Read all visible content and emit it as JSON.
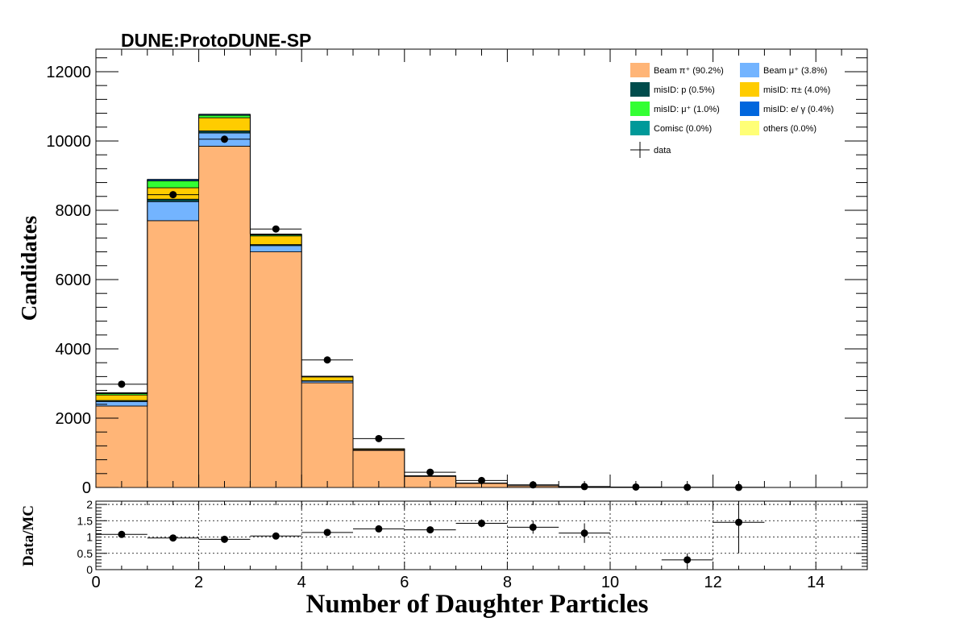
{
  "chart_data": {
    "type": "bar",
    "title": "DUNE:ProtoDUNE-SP",
    "xlabel": "Number of Daughter Particles",
    "ylabel": "Candidates",
    "ratio_ylabel": "Data/MC",
    "xlim": [
      0,
      15
    ],
    "ylim": [
      0,
      12650
    ],
    "ratio_ylim": [
      0,
      2.1
    ],
    "x_ticks": [
      0,
      2,
      4,
      6,
      8,
      10,
      12,
      14
    ],
    "y_ticks": [
      0,
      2000,
      4000,
      6000,
      8000,
      10000,
      12000
    ],
    "ratio_y_ticks": [
      0,
      0.5,
      1,
      1.5,
      2
    ],
    "ratio_y_tick_labels": [
      "0",
      "0.5",
      "1",
      "1.5",
      "2"
    ],
    "bin_edges": [
      0,
      1,
      2,
      3,
      4,
      5,
      6,
      7,
      8,
      9,
      10,
      11,
      12,
      13,
      14,
      15
    ],
    "stack_series": [
      {
        "legend": "Beam  π⁺ (90.2%)",
        "color": "#ffb577",
        "values": [
          2350,
          7700,
          9850,
          6800,
          3020,
          1070,
          320,
          120,
          45,
          15,
          8,
          4,
          2,
          0,
          0
        ]
      },
      {
        "legend": "Beam  μ⁺ (3.8%)",
        "color": "#73b4ff",
        "values": [
          130,
          550,
          380,
          180,
          50,
          15,
          5,
          2,
          1,
          0,
          0,
          0,
          0,
          0,
          0
        ]
      },
      {
        "legend": "misID: p (0.5%)",
        "color": "#004c4c",
        "values": [
          30,
          70,
          60,
          30,
          10,
          3,
          1,
          0,
          0,
          0,
          0,
          0,
          0,
          0,
          0
        ]
      },
      {
        "legend": "misID:  π± (4.0%)",
        "color": "#ffcc00",
        "values": [
          160,
          330,
          380,
          250,
          110,
          25,
          8,
          2,
          1,
          0,
          0,
          0,
          0,
          0,
          0
        ]
      },
      {
        "legend": "misID:  μ⁺ (1.0%)",
        "color": "#33ff33",
        "values": [
          40,
          200,
          70,
          30,
          10,
          2,
          1,
          0,
          0,
          0,
          0,
          0,
          0,
          0,
          0
        ]
      },
      {
        "legend": "misID: e/ γ (0.4%)",
        "color": "#0066dd",
        "values": [
          20,
          40,
          30,
          20,
          10,
          2,
          0,
          0,
          0,
          0,
          0,
          0,
          0,
          0,
          0
        ]
      },
      {
        "legend": "Comisc (0.0%)",
        "color": "#009999",
        "values": [
          0,
          0,
          0,
          0,
          0,
          0,
          0,
          0,
          0,
          0,
          0,
          0,
          0,
          0,
          0
        ]
      },
      {
        "legend": "others (0.0%)",
        "color": "#ffff77",
        "values": [
          0,
          0,
          0,
          0,
          0,
          0,
          0,
          0,
          0,
          0,
          0,
          0,
          0,
          0,
          0
        ]
      }
    ],
    "data_legend": "data",
    "data_x": [
      0.5,
      1.5,
      2.5,
      3.5,
      4.5,
      5.5,
      6.5,
      7.5,
      8.5,
      9.5,
      10.5,
      11.5,
      12.5
    ],
    "data_values": [
      2980,
      8450,
      10050,
      7460,
      3680,
      1410,
      440,
      200,
      75,
      25,
      12,
      3,
      2
    ],
    "ratio_x": [
      0.5,
      1.5,
      2.5,
      3.5,
      4.5,
      5.5,
      6.5,
      7.5,
      8.5,
      9.5,
      11.5,
      12.5
    ],
    "ratio_values": [
      1.08,
      0.97,
      0.93,
      1.03,
      1.14,
      1.25,
      1.22,
      1.42,
      1.3,
      1.12,
      0.3,
      1.45
    ],
    "ratio_errors": [
      0.02,
      0.01,
      0.01,
      0.01,
      0.02,
      0.04,
      0.07,
      0.12,
      0.2,
      0.3,
      0.2,
      0.95
    ],
    "grid_ratio": true,
    "legend_position": "top-right"
  }
}
